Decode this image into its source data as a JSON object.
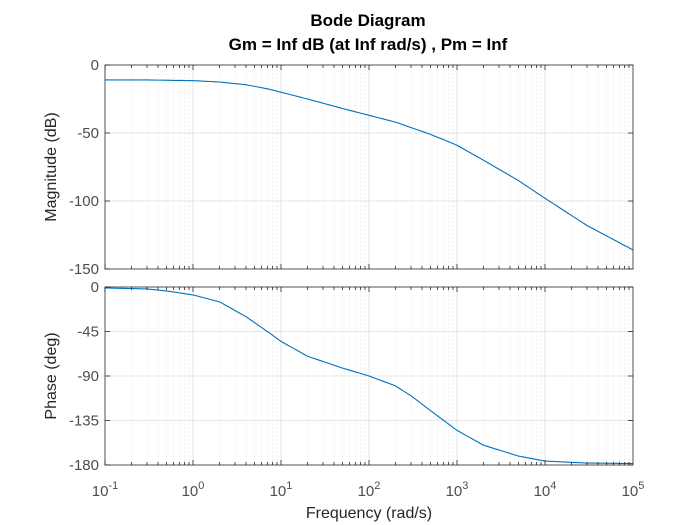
{
  "chart_data": {
    "type": "line",
    "title": "Bode Diagram",
    "subtitle": "Gm = Inf dB (at Inf rad/s) ,  Pm = Inf",
    "xlabel": "Frequency  (rad/s)",
    "xscale": "log",
    "xlim": [
      0.1,
      100000
    ],
    "x_ticks": [
      {
        "base": "10",
        "exp": "-1"
      },
      {
        "base": "10",
        "exp": "0"
      },
      {
        "base": "10",
        "exp": "1"
      },
      {
        "base": "10",
        "exp": "2"
      },
      {
        "base": "10",
        "exp": "3"
      },
      {
        "base": "10",
        "exp": "4"
      },
      {
        "base": "10",
        "exp": "5"
      }
    ],
    "grid": true,
    "line_color": "#0072BD",
    "panels": [
      {
        "ylabel": "Magnitude (dB)",
        "ylim": [
          -150,
          0
        ],
        "yticks": [
          0,
          -50,
          -100,
          -150
        ],
        "series": [
          {
            "x": [
              0.1,
              0.3,
              1,
              2,
              4,
              7,
              10,
              20,
              50,
              100,
              200,
              500,
              1000,
              2000,
              5000,
              10000,
              30000,
              100000
            ],
            "y": [
              -11,
              -11,
              -11.5,
              -12.5,
              -14.5,
              -17.5,
              -20,
              -25,
              -32,
              -37,
              -42,
              -51,
              -59,
              -70,
              -85,
              -98,
              -118,
              -136
            ]
          }
        ]
      },
      {
        "ylabel": "Phase (deg)",
        "ylim": [
          -180,
          0
        ],
        "yticks": [
          0,
          -45,
          -90,
          -135,
          -180
        ],
        "series": [
          {
            "x": [
              0.1,
              0.3,
              0.5,
              1,
              2,
              4,
              7,
              10,
              20,
              50,
              100,
              200,
              300,
              500,
              1000,
              2000,
              5000,
              10000,
              30000,
              100000
            ],
            "y": [
              -1,
              -2,
              -4,
              -8,
              -15,
              -30,
              -45,
              -55,
              -70,
              -82,
              -90,
              -100,
              -110,
              -125,
              -145,
              -160,
              -171,
              -176,
              -178,
              -178.5
            ]
          }
        ]
      }
    ]
  }
}
